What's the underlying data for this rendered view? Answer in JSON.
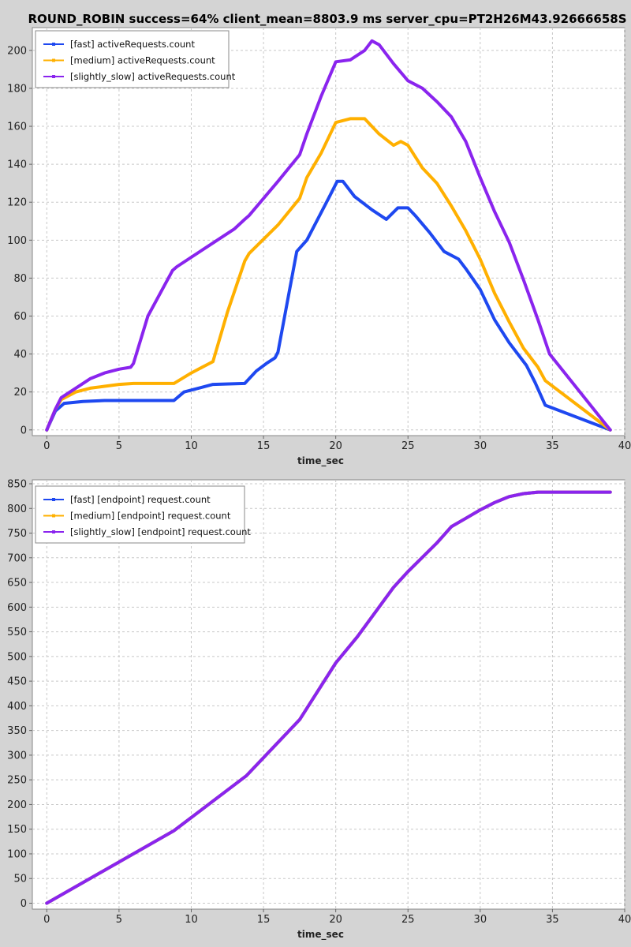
{
  "page_title": "ROUND_ROBIN success=64% client_mean=8803.9 ms server_cpu=PT2H26M43.92666658S",
  "colors": {
    "fast": "#1e48f0",
    "medium": "#ffb000",
    "slightly_slow": "#8a24ee",
    "background": "#d4d4d4",
    "plot": "#ffffff"
  },
  "chart_data": [
    {
      "type": "line",
      "xlabel": "time_sec",
      "ylabel": "",
      "xlim": [
        -1,
        40
      ],
      "ylim": [
        -3,
        212
      ],
      "xticks": [
        0,
        5,
        10,
        15,
        20,
        25,
        30,
        35,
        40
      ],
      "yticks": [
        0,
        20,
        40,
        60,
        80,
        100,
        120,
        140,
        160,
        180,
        200
      ],
      "grid": true,
      "legend_position": "top-left",
      "series": [
        {
          "name": "[fast] activeRequests.count",
          "color": "#1e48f0",
          "x": [
            0,
            0.6,
            1.2,
            2.5,
            4,
            6,
            8.8,
            9.5,
            10.5,
            11.5,
            13.7,
            14.5,
            15.2,
            15.8,
            16,
            17.3,
            18,
            19.5,
            20.1,
            20.5,
            21.3,
            22.5,
            23.5,
            24.3,
            25,
            25.5,
            26.5,
            27.5,
            28.5,
            29,
            30,
            31,
            32,
            33.2,
            33.8,
            34.5,
            39
          ],
          "y": [
            0,
            10,
            14,
            15,
            15.5,
            15.5,
            15.5,
            20,
            22,
            24,
            24.5,
            31,
            35,
            38,
            41,
            94,
            100,
            122,
            131,
            131,
            123,
            116,
            111,
            117,
            117,
            113,
            104,
            94,
            90,
            85,
            74,
            58,
            46,
            34,
            25,
            13,
            0
          ]
        },
        {
          "name": "[medium] activeRequests.count",
          "color": "#ffb000",
          "x": [
            0,
            0.6,
            1,
            2,
            3,
            4,
            5,
            6,
            8.8,
            10,
            11,
            11.5,
            12.5,
            13.7,
            14,
            16,
            17.5,
            18,
            19,
            20,
            21,
            22,
            23,
            24,
            24.5,
            25,
            26,
            27,
            28,
            29,
            30,
            31,
            32,
            33,
            34,
            34.5,
            39
          ],
          "y": [
            0,
            11,
            16,
            20,
            22,
            23,
            24,
            24.5,
            24.5,
            30,
            34,
            36,
            62,
            89,
            93,
            108,
            122,
            133,
            146,
            162,
            164,
            164,
            156,
            150,
            152,
            150,
            138,
            130,
            118,
            105,
            90,
            72,
            57,
            43,
            33,
            26,
            0
          ]
        },
        {
          "name": "[slightly_slow] activeRequests.count",
          "color": "#8a24ee",
          "x": [
            0,
            0.6,
            1,
            2,
            3,
            4,
            5,
            5.8,
            6,
            7,
            8.7,
            9,
            11,
            13,
            13.7,
            14,
            16,
            17.5,
            18,
            19,
            20,
            21,
            22,
            22.5,
            23,
            24,
            25,
            26,
            27,
            28,
            29,
            30,
            31,
            32,
            33,
            34,
            34.8,
            39
          ],
          "y": [
            0,
            11,
            17,
            22,
            27,
            30,
            32,
            33,
            35,
            60,
            84,
            86,
            96,
            106,
            111,
            113,
            131,
            145,
            156,
            176,
            194,
            195,
            200,
            205,
            203,
            193,
            184,
            180,
            173,
            165,
            152,
            133,
            115,
            99,
            79,
            58,
            40,
            0
          ]
        }
      ]
    },
    {
      "type": "line",
      "xlabel": "time_sec",
      "ylabel": "",
      "xlim": [
        -1,
        40
      ],
      "ylim": [
        -12,
        858
      ],
      "xticks": [
        0,
        5,
        10,
        15,
        20,
        25,
        30,
        35,
        40
      ],
      "yticks": [
        0,
        50,
        100,
        150,
        200,
        250,
        300,
        350,
        400,
        450,
        500,
        550,
        600,
        650,
        700,
        750,
        800,
        850
      ],
      "grid": true,
      "legend_position": "top-left",
      "series": [
        {
          "name": "[fast] [endpoint] request.count",
          "color": "#1e48f0",
          "x": [
            0,
            8.8,
            13.8,
            17.5,
            20,
            21.5,
            24,
            25,
            27,
            28,
            29,
            30,
            31,
            32,
            33,
            34,
            39
          ],
          "y": [
            0,
            147,
            258,
            372,
            487,
            540,
            640,
            672,
            730,
            763,
            780,
            797,
            812,
            824,
            830,
            833,
            833
          ]
        },
        {
          "name": "[medium] [endpoint] request.count",
          "color": "#ffb000",
          "x": [
            0,
            8.8,
            13.8,
            17.5,
            20,
            21.5,
            24,
            25,
            27,
            28,
            29,
            30,
            31,
            32,
            33,
            34,
            39
          ],
          "y": [
            0,
            147,
            258,
            372,
            487,
            540,
            640,
            672,
            730,
            763,
            780,
            797,
            812,
            824,
            830,
            833,
            833
          ]
        },
        {
          "name": "[slightly_slow] [endpoint] request.count",
          "color": "#8a24ee",
          "x": [
            0,
            8.8,
            13.8,
            17.5,
            20,
            21.5,
            24,
            25,
            27,
            28,
            29,
            30,
            31,
            32,
            33,
            34,
            39
          ],
          "y": [
            0,
            147,
            258,
            372,
            487,
            540,
            640,
            672,
            730,
            763,
            780,
            797,
            812,
            824,
            830,
            833,
            833
          ]
        }
      ]
    }
  ]
}
